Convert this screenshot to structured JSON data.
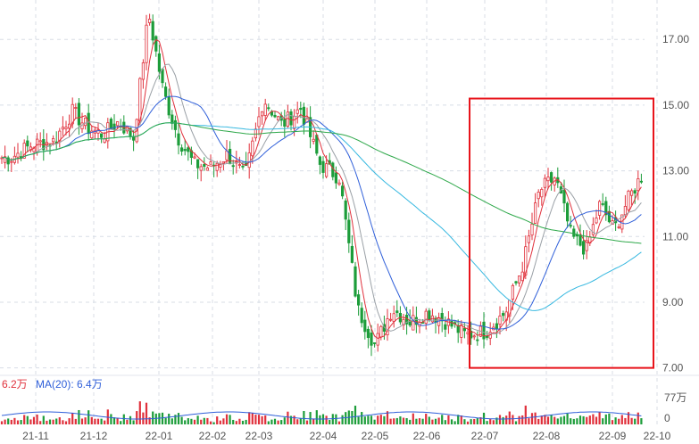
{
  "colors": {
    "up": "#e0313c",
    "down": "#1d9d3a",
    "ma5": "#e0313c",
    "ma10": "#9aa0a6",
    "ma20": "#2f5fd9",
    "ma60": "#36b8e0",
    "ma120": "#2ea84a",
    "grid": "#d8dde6",
    "highlight": "#e8141b"
  },
  "chart_data": {
    "type": "candlestick",
    "title": "",
    "price_axis": {
      "ticks": [
        "17.00",
        "15.00",
        "13.00",
        "11.00",
        "9.00",
        "7.00"
      ],
      "ylim": [
        6.8,
        18.2
      ]
    },
    "x_axis": {
      "ticks": [
        "21-11",
        "21-12",
        "22-01",
        "22-02",
        "22-03",
        "22-04",
        "22-05",
        "22-06",
        "22-07",
        "22-08",
        "22-09",
        "22-10"
      ]
    },
    "close_path": [
      [
        "21-11",
        13.4
      ],
      [
        "21-11",
        13.8
      ],
      [
        "21-11",
        13.9
      ],
      [
        "21-12",
        14.8
      ],
      [
        "21-12",
        14.3
      ],
      [
        "21-12",
        14.1
      ],
      [
        "21-12",
        14.5
      ],
      [
        "22-01",
        14.0
      ],
      [
        "22-01",
        17.8
      ],
      [
        "22-01",
        15.4
      ],
      [
        "22-01",
        14.0
      ],
      [
        "22-02",
        13.2
      ],
      [
        "22-02",
        13.1
      ],
      [
        "22-02",
        13.5
      ],
      [
        "22-03",
        12.8
      ],
      [
        "22-03",
        15.2
      ],
      [
        "22-03",
        14.4
      ],
      [
        "22-04",
        14.9
      ],
      [
        "22-04",
        13.2
      ],
      [
        "22-04",
        12.8
      ],
      [
        "22-05",
        8.8
      ],
      [
        "22-05",
        7.7
      ],
      [
        "22-05",
        8.8
      ],
      [
        "22-06",
        8.4
      ],
      [
        "22-06",
        8.7
      ],
      [
        "22-06",
        8.4
      ],
      [
        "22-07",
        8.0
      ],
      [
        "22-07",
        8.1
      ],
      [
        "22-07",
        8.7
      ],
      [
        "22-08",
        10.2
      ],
      [
        "22-08",
        12.4
      ],
      [
        "22-08",
        12.8
      ],
      [
        "22-08",
        11.0
      ],
      [
        "22-09",
        10.6
      ],
      [
        "22-09",
        12.0
      ],
      [
        "22-09",
        11.2
      ],
      [
        "22-09",
        12.1
      ],
      [
        "22-10",
        13.1
      ]
    ],
    "volume_axis": {
      "ticks": [
        "77万",
        "0"
      ]
    },
    "volume_legend": [
      {
        "name": "6.2万",
        "color": "#e0313c"
      },
      {
        "name": "MA(20): 6.4万",
        "color": "#2f5fd9"
      }
    ],
    "highlight_box": {
      "from": "22-07",
      "to": "22-10",
      "price_range": [
        7.0,
        15.2
      ]
    }
  }
}
